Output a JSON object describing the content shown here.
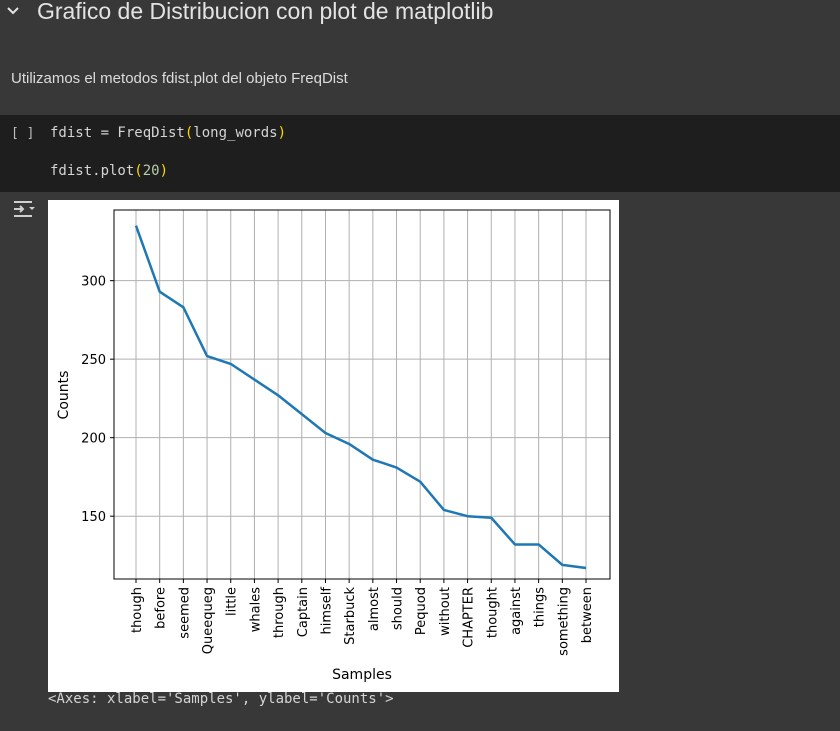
{
  "section": {
    "title": "Grafico de Distribucion con plot de matplotlib",
    "chevron_icon": "chevron-down-icon"
  },
  "markdown": {
    "text": "Utilizamos el metodos fdist.plot del objeto FreqDist"
  },
  "code_cell": {
    "run_indicator": "[ ]",
    "line1_pre": "fdist = FreqDist",
    "line1_paren_open": "(",
    "line1_arg": "long_words",
    "line1_paren_close": ")",
    "line2_pre": "fdist.plot",
    "line2_paren_open": "(",
    "line2_arg": "20",
    "line2_paren_close": ")"
  },
  "output": {
    "icon": "output-toggle-icon",
    "repr_text": "<Axes: xlabel='Samples', ylabel='Counts'>"
  },
  "chart_data": {
    "type": "line",
    "title": "",
    "xlabel": "Samples",
    "ylabel": "Counts",
    "categories": [
      "though",
      "before",
      "seemed",
      "Queequeg",
      "little",
      "whales",
      "through",
      "Captain",
      "himself",
      "Starbuck",
      "almost",
      "should",
      "Pequod",
      "without",
      "CHAPTER",
      "thought",
      "against",
      "things",
      "something",
      "between"
    ],
    "values": [
      335,
      293,
      283,
      252,
      247,
      237,
      227,
      215,
      203,
      196,
      186,
      181,
      172,
      154,
      150,
      149,
      132,
      132,
      119,
      117
    ],
    "yticks": [
      150,
      200,
      250,
      300
    ],
    "ylim": [
      110,
      345
    ],
    "grid": true,
    "line_color": "#1f77b4"
  }
}
